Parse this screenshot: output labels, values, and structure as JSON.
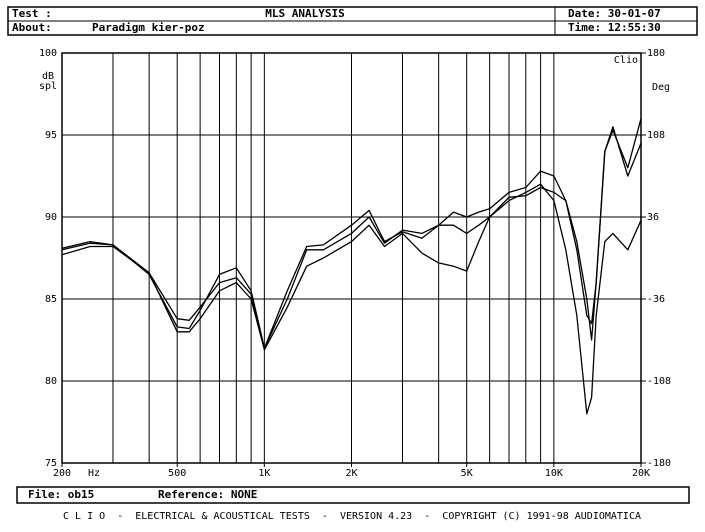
{
  "header": {
    "test_label": "Test :",
    "title": "MLS ANALYSIS",
    "date": "Date: 30-01-07",
    "about_label": "About:",
    "about": "Paradigm kier-poz",
    "time": "Time: 12:55:30"
  },
  "chart_data": {
    "type": "line",
    "brand": "Clio",
    "y_label_top": "dB",
    "y_label_bottom": "spl",
    "y2_label": "Deg",
    "x_unit": "Hz",
    "log_x": true,
    "grid": true,
    "x": [
      200,
      250,
      300,
      400,
      500,
      550,
      600,
      700,
      800,
      900,
      1000,
      1200,
      1400,
      1600,
      2000,
      2300,
      2600,
      3000,
      3500,
      4000,
      4500,
      5000,
      5500,
      6000,
      7000,
      8000,
      9000,
      10000,
      11000,
      12000,
      13000,
      13500,
      14000,
      15000,
      16000,
      18000,
      20000
    ],
    "series": [
      {
        "color": "#000000",
        "values": [
          88.0,
          88.4,
          88.3,
          86.5,
          83.3,
          83.2,
          84.3,
          86.5,
          86.9,
          85.5,
          82.0,
          85.5,
          88.2,
          88.3,
          89.5,
          90.4,
          88.5,
          89.1,
          88.7,
          89.5,
          90.3,
          90.0,
          90.3,
          90.5,
          91.5,
          91.8,
          92.8,
          92.5,
          91.0,
          88.0,
          84.0,
          83.5,
          86.0,
          94.0,
          95.3,
          93.0,
          96.0
        ]
      },
      {
        "color": "#000000",
        "values": [
          87.7,
          88.2,
          88.2,
          86.6,
          83.8,
          83.7,
          84.5,
          86.0,
          86.3,
          85.3,
          82.0,
          85.0,
          88.0,
          88.0,
          89.0,
          90.0,
          88.4,
          89.2,
          89.0,
          89.5,
          89.5,
          89.0,
          89.5,
          90.0,
          91.0,
          91.5,
          92.0,
          91.0,
          88.0,
          84.0,
          78.0,
          79.0,
          84.0,
          88.5,
          89.0,
          88.0,
          89.8
        ]
      },
      {
        "color": "#000000",
        "values": [
          88.1,
          88.5,
          88.3,
          86.6,
          83.0,
          83.0,
          83.8,
          85.5,
          86.0,
          85.0,
          81.9,
          84.5,
          87.0,
          87.5,
          88.5,
          89.5,
          88.2,
          89.0,
          87.8,
          87.2,
          87.0,
          86.7,
          88.5,
          90.0,
          91.2,
          91.3,
          91.8,
          91.5,
          91.0,
          88.5,
          85.0,
          82.5,
          86.0,
          94.0,
          95.5,
          92.5,
          94.5
        ]
      }
    ],
    "xlim": [
      200,
      20000
    ],
    "xticks": [
      {
        "value": 200,
        "label": "200"
      },
      {
        "value": 500,
        "label": "500"
      },
      {
        "value": 1000,
        "label": "1K"
      },
      {
        "value": 2000,
        "label": "2K"
      },
      {
        "value": 5000,
        "label": "5K"
      },
      {
        "value": 10000,
        "label": "10K"
      },
      {
        "value": 20000,
        "label": "20K"
      }
    ],
    "xgrid": [
      300,
      400,
      500,
      600,
      700,
      800,
      900,
      1000,
      2000,
      3000,
      4000,
      5000,
      6000,
      7000,
      8000,
      9000,
      10000
    ],
    "ylim": [
      75,
      100
    ],
    "yticks": [
      75,
      80,
      85,
      90,
      95,
      100
    ],
    "y2lim": [
      -180,
      180
    ],
    "y2ticks": [
      -180,
      -108,
      -36,
      36,
      108,
      180
    ]
  },
  "footer": {
    "file": "File: ob15",
    "reference": "Reference: NONE",
    "credits": "C L I O  -  ELECTRICAL & ACOUSTICAL TESTS  -  VERSION 4.23  -  COPYRIGHT (C) 1991-98 AUDIOMATICA"
  }
}
